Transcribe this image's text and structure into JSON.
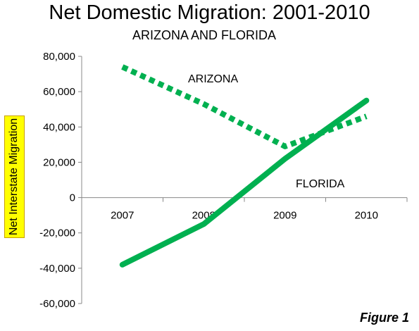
{
  "chart_data": {
    "type": "line",
    "title": "Net Domestic Migration: 2001-2010",
    "subtitle": "ARIZONA AND FLORIDA",
    "xlabel": "",
    "ylabel": "Net Interstate Migration",
    "categories": [
      "2007",
      "2008",
      "2009",
      "2010"
    ],
    "ylim": [
      -60000,
      80000
    ],
    "yticks": [
      -60000,
      -40000,
      -20000,
      0,
      20000,
      40000,
      60000,
      80000
    ],
    "ytick_labels": [
      "-60,000",
      "-40,000",
      "-20,000",
      "0",
      "20,000",
      "40,000",
      "60,000",
      "80,000"
    ],
    "grid": false,
    "legend": "none",
    "series": [
      {
        "name": "ARIZONA",
        "values": [
          74000,
          53000,
          29000,
          46000
        ],
        "color": "#00b050",
        "style": "dotted"
      },
      {
        "name": "FLORIDA",
        "values": [
          -38000,
          -15000,
          22000,
          55000
        ],
        "color": "#00b050",
        "style": "solid"
      }
    ]
  },
  "figure_label": "Figure 1"
}
